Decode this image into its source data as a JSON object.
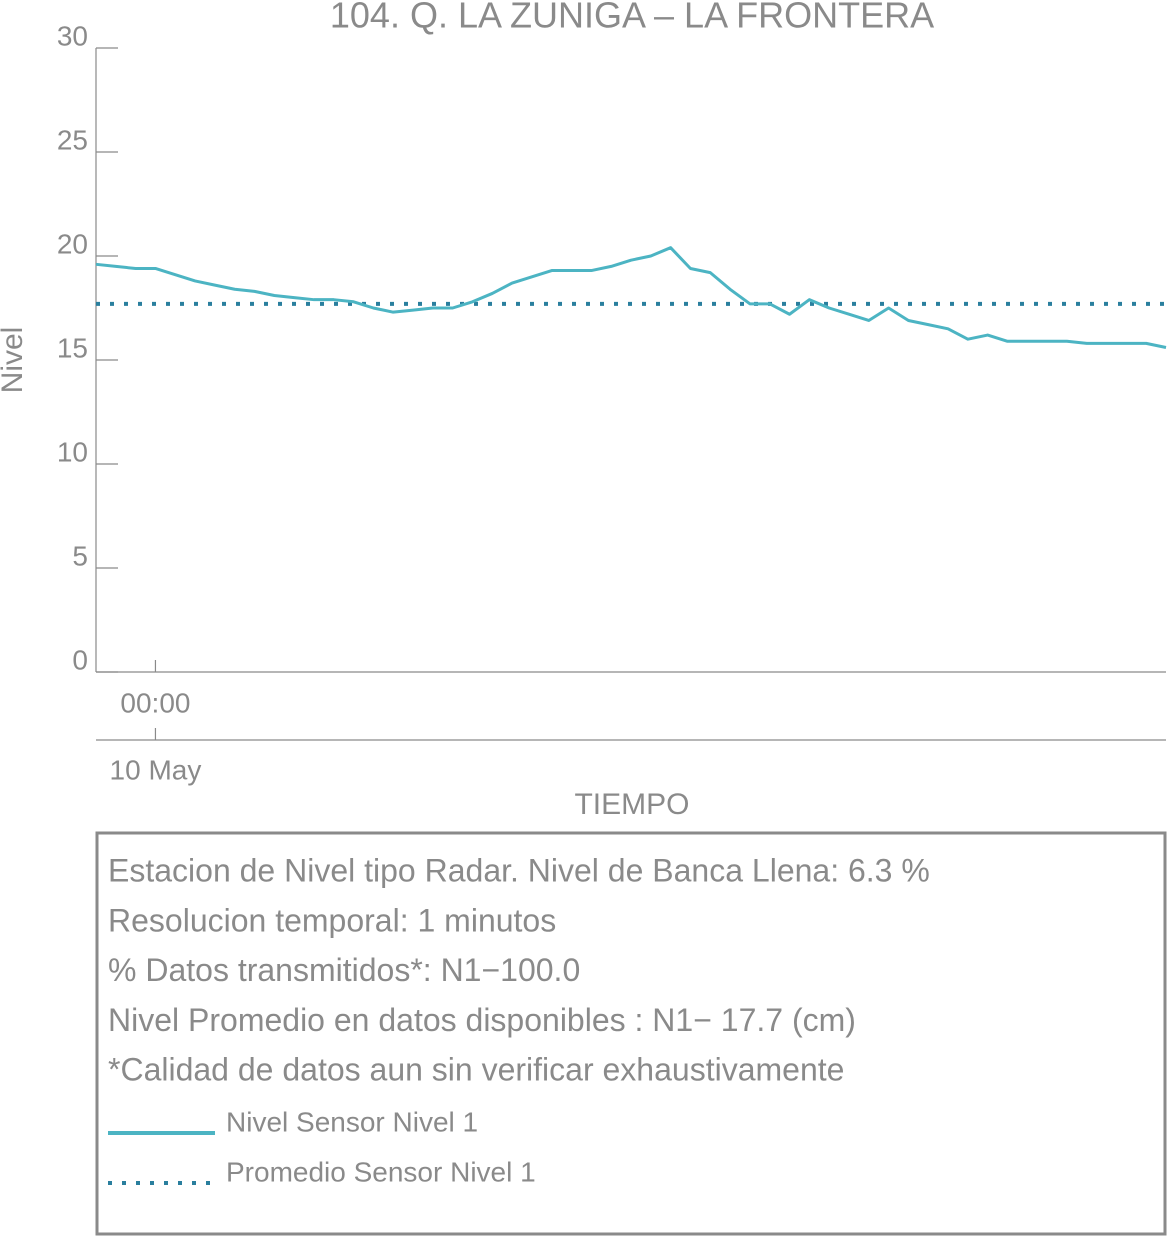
{
  "chart_data": {
    "type": "line",
    "title": "104. Q. LA ZUNIGA – LA FRONTERA",
    "y_label": "Nivel",
    "x_label": "TIEMPO",
    "categories": [
      null,
      null,
      null,
      "00:00",
      null,
      null,
      null,
      null,
      null,
      null,
      null,
      null,
      null,
      null,
      null,
      null,
      null,
      null,
      null,
      null,
      null,
      null,
      null,
      null,
      null,
      null,
      null,
      null,
      null,
      null,
      null,
      null,
      null,
      null,
      null,
      null,
      null,
      null,
      null,
      null,
      null,
      null,
      null,
      null,
      null,
      null,
      null,
      null,
      null,
      null,
      null,
      null,
      null,
      null,
      null
    ],
    "date_label": "10 May",
    "series": [
      {
        "name": "Nivel Sensor Nivel 1",
        "color": "#4cb4c3",
        "values": [
          19.6,
          19.5,
          19.4,
          19.4,
          19.1,
          18.8,
          18.6,
          18.4,
          18.3,
          18.1,
          18.0,
          17.9,
          17.9,
          17.8,
          17.5,
          17.3,
          17.4,
          17.5,
          17.5,
          17.8,
          18.2,
          18.7,
          19.0,
          19.3,
          19.3,
          19.3,
          19.5,
          19.8,
          20.0,
          20.4,
          19.4,
          19.2,
          18.4,
          17.7,
          17.7,
          17.2,
          17.9,
          17.5,
          17.2,
          16.9,
          17.5,
          16.9,
          16.7,
          16.5,
          16.0,
          16.2,
          15.9,
          15.9,
          15.9,
          15.9,
          15.8,
          15.8,
          15.8,
          15.8,
          15.6
        ]
      }
    ],
    "mean_line": {
      "name": "Promedio Sensor Nivel 1",
      "color": "#2a7f9e",
      "value": 17.7
    },
    "ylim": [
      0,
      30
    ],
    "yticks": [
      0,
      5,
      10,
      15,
      20,
      25,
      30
    ],
    "notes": [
      "Estacion de Nivel tipo Radar. Nivel de Banca Llena:  6.3 %",
      "Resolucion temporal: 1 minutos",
      "% Datos transmitidos*: N1−100.0",
      "Nivel Promedio en datos disponibles : N1− 17.7 (cm)",
      "*Calidad de datos aun sin verificar exhaustivamente"
    ]
  }
}
